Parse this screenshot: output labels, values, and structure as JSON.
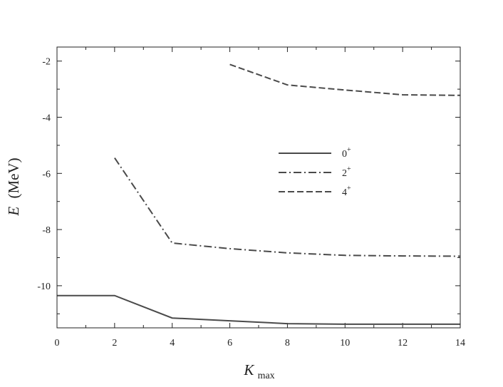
{
  "chart_data": {
    "type": "line",
    "title": "",
    "xlabel": "K",
    "xlabel_subscript": "max",
    "ylabel_symbol": "E",
    "ylabel_unit": "(MeV)",
    "xlim": [
      0,
      14
    ],
    "ylim": [
      -11.5,
      -1.5
    ],
    "x_ticks": [
      0,
      2,
      4,
      6,
      8,
      10,
      12,
      14
    ],
    "y_ticks": [
      -2,
      -4,
      -6,
      -8,
      -10
    ],
    "grid": false,
    "legend_position": "center-right",
    "series": [
      {
        "name": "0",
        "sup": "+",
        "dash": "solid",
        "x": [
          0,
          2,
          4,
          6,
          8,
          10,
          12,
          14
        ],
        "y": [
          -10.35,
          -10.35,
          -11.15,
          -11.25,
          -11.35,
          -11.37,
          -11.37,
          -11.37
        ]
      },
      {
        "name": "2",
        "sup": "+",
        "dash": "dashdot",
        "x": [
          2,
          4,
          6,
          8,
          10,
          12,
          14
        ],
        "y": [
          -5.45,
          -8.48,
          -8.68,
          -8.83,
          -8.92,
          -8.94,
          -8.95
        ]
      },
      {
        "name": "4",
        "sup": "+",
        "dash": "dashed",
        "x": [
          6,
          8,
          10,
          12,
          14
        ],
        "y": [
          -2.12,
          -2.85,
          -3.03,
          -3.2,
          -3.22
        ]
      }
    ],
    "colors": {
      "line": "#4a4a4a",
      "axis": "#222222"
    }
  }
}
